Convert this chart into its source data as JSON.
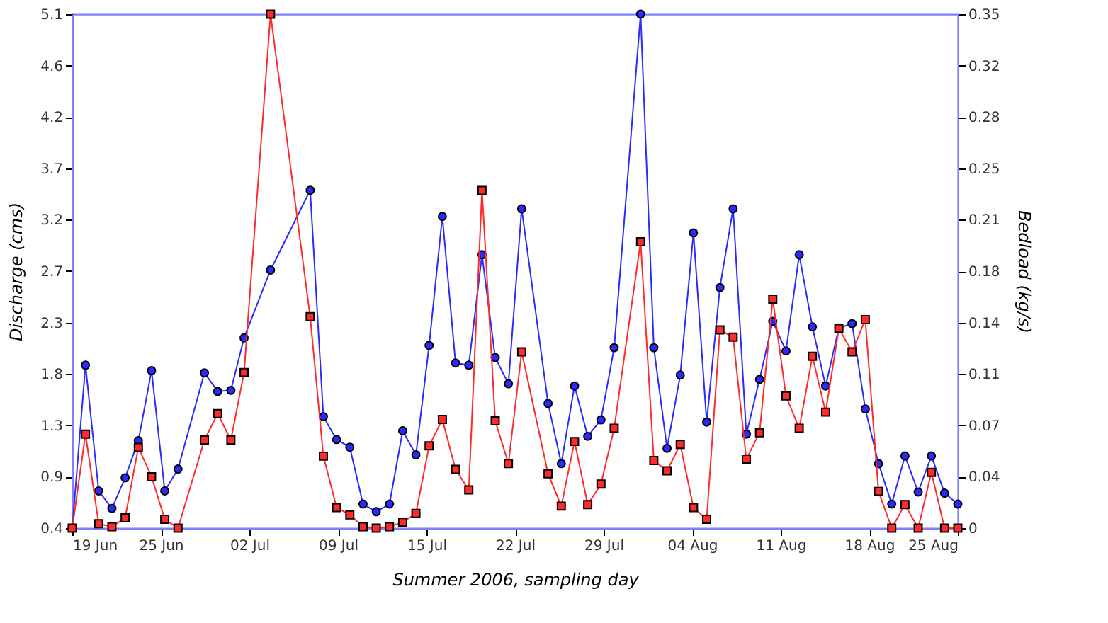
{
  "chart_data": {
    "type": "line",
    "xlabel": "Summer 2006, sampling day",
    "ylabel": "Discharge (cms)",
    "y2label": "Bedload (kg/s)",
    "x": [
      "2006-06-19",
      "2006-06-20",
      "2006-06-21",
      "2006-06-22",
      "2006-06-23",
      "2006-06-24",
      "2006-06-25",
      "2006-06-26",
      "2006-06-27",
      "2006-06-29",
      "2006-06-30",
      "2006-07-01",
      "2006-07-02",
      "2006-07-04",
      "2006-07-07",
      "2006-07-08",
      "2006-07-09",
      "2006-07-10",
      "2006-07-11",
      "2006-07-12",
      "2006-07-13",
      "2006-07-14",
      "2006-07-15",
      "2006-07-16",
      "2006-07-17",
      "2006-07-18",
      "2006-07-19",
      "2006-07-20",
      "2006-07-21",
      "2006-07-22",
      "2006-07-23",
      "2006-07-25",
      "2006-07-26",
      "2006-07-27",
      "2006-07-28",
      "2006-07-29",
      "2006-07-30",
      "2006-08-01",
      "2006-08-02",
      "2006-08-03",
      "2006-08-04",
      "2006-08-05",
      "2006-08-06",
      "2006-08-07",
      "2006-08-08",
      "2006-08-09",
      "2006-08-10",
      "2006-08-11",
      "2006-08-12",
      "2006-08-13",
      "2006-08-14",
      "2006-08-15",
      "2006-08-16",
      "2006-08-17",
      "2006-08-18",
      "2006-08-19",
      "2006-08-20",
      "2006-08-21",
      "2006-08-22",
      "2006-08-23",
      "2006-08-24",
      "2006-08-25"
    ],
    "series": [
      {
        "color": "#2a2aff",
        "marker": "circle",
        "line_style": "solid",
        "values": [
          0.4,
          1.89,
          0.74,
          0.58,
          0.86,
          1.2,
          1.84,
          0.74,
          0.94,
          1.82,
          1.65,
          1.66,
          2.14,
          2.76,
          3.49,
          1.42,
          1.21,
          1.14,
          0.62,
          0.55,
          0.62,
          1.29,
          1.07,
          2.07,
          3.25,
          1.91,
          1.89,
          2.9,
          1.96,
          1.72,
          3.32,
          1.54,
          0.99,
          1.7,
          1.24,
          1.39,
          2.05,
          5.1,
          2.05,
          1.13,
          1.8,
          3.1,
          1.37,
          2.6,
          3.32,
          1.26,
          1.76,
          2.29,
          2.02,
          2.9,
          2.24,
          1.7,
          2.23,
          2.27,
          1.49,
          0.99,
          0.62,
          1.06,
          0.73,
          1.06,
          0.72,
          0.62
        ]
      },
      {
        "color": "#ff2a2a",
        "marker": "square",
        "line_style": "solid",
        "axis": "y2",
        "values": [
          0,
          0.064,
          0.003,
          0.001,
          0.007,
          0.055,
          0.035,
          0.006,
          0,
          0.06,
          0.078,
          0.06,
          0.106,
          0.35,
          0.144,
          0.049,
          0.014,
          0.009,
          0.001,
          0,
          0.001,
          0.004,
          0.01,
          0.056,
          0.074,
          0.04,
          0.026,
          0.23,
          0.073,
          0.044,
          0.12,
          0.037,
          0.015,
          0.059,
          0.016,
          0.03,
          0.068,
          0.195,
          0.046,
          0.039,
          0.057,
          0.014,
          0.006,
          0.135,
          0.13,
          0.047,
          0.065,
          0.156,
          0.09,
          0.068,
          0.117,
          0.079,
          0.136,
          0.12,
          0.142,
          0.025,
          0,
          0.016,
          0,
          0.038,
          0,
          0
        ]
      }
    ],
    "xlim": [
      "2006-06-19",
      "2006-08-25"
    ],
    "xticks": [
      {
        "value": "2006-06-19T00:00",
        "label": "19 Jun"
      },
      {
        "value": "2006-06-25T16:48",
        "label": "25 Jun"
      },
      {
        "value": "2006-07-02T09:36",
        "label": "02 Jul"
      },
      {
        "value": "2006-07-09T02:24",
        "label": "09 Jul"
      },
      {
        "value": "2006-07-15T19:12",
        "label": "15 Jul"
      },
      {
        "value": "2006-07-22T12:00",
        "label": "22 Jul"
      },
      {
        "value": "2006-07-29T04:48",
        "label": "29 Jul"
      },
      {
        "value": "2006-08-04T21:36",
        "label": "04 Aug"
      },
      {
        "value": "2006-08-11T14:24",
        "label": "11 Aug"
      },
      {
        "value": "2006-08-18T07:12",
        "label": "18 Aug"
      },
      {
        "value": "2006-08-25T00:00",
        "label": "25 Aug"
      }
    ],
    "ylim": [
      0.4,
      5.1
    ],
    "yticks": [
      0.4,
      {
        "value": 0.87,
        "label": "0.9"
      },
      {
        "value": 1.34,
        "label": "1.3"
      },
      {
        "value": 1.81,
        "label": "1.8"
      },
      {
        "value": 2.28,
        "label": "2.3"
      },
      {
        "value": 2.75,
        "label": "2.7"
      },
      {
        "value": 3.22,
        "label": "3.2"
      },
      {
        "value": 3.69,
        "label": "3.7"
      },
      {
        "value": 4.16,
        "label": "4.2"
      },
      {
        "value": 4.63,
        "label": "4.6"
      },
      5.1
    ],
    "y2lim": [
      0,
      0.35
    ],
    "y2ticks": [
      0,
      {
        "value": 0.035,
        "label": "0.04"
      },
      0.07,
      {
        "value": 0.105,
        "label": "0.11"
      },
      0.14,
      {
        "value": 0.175,
        "label": "0.18"
      },
      0.21,
      {
        "value": 0.245,
        "label": "0.25"
      },
      0.28,
      {
        "value": 0.315,
        "label": "0.32"
      },
      0.35
    ],
    "grid": false
  }
}
